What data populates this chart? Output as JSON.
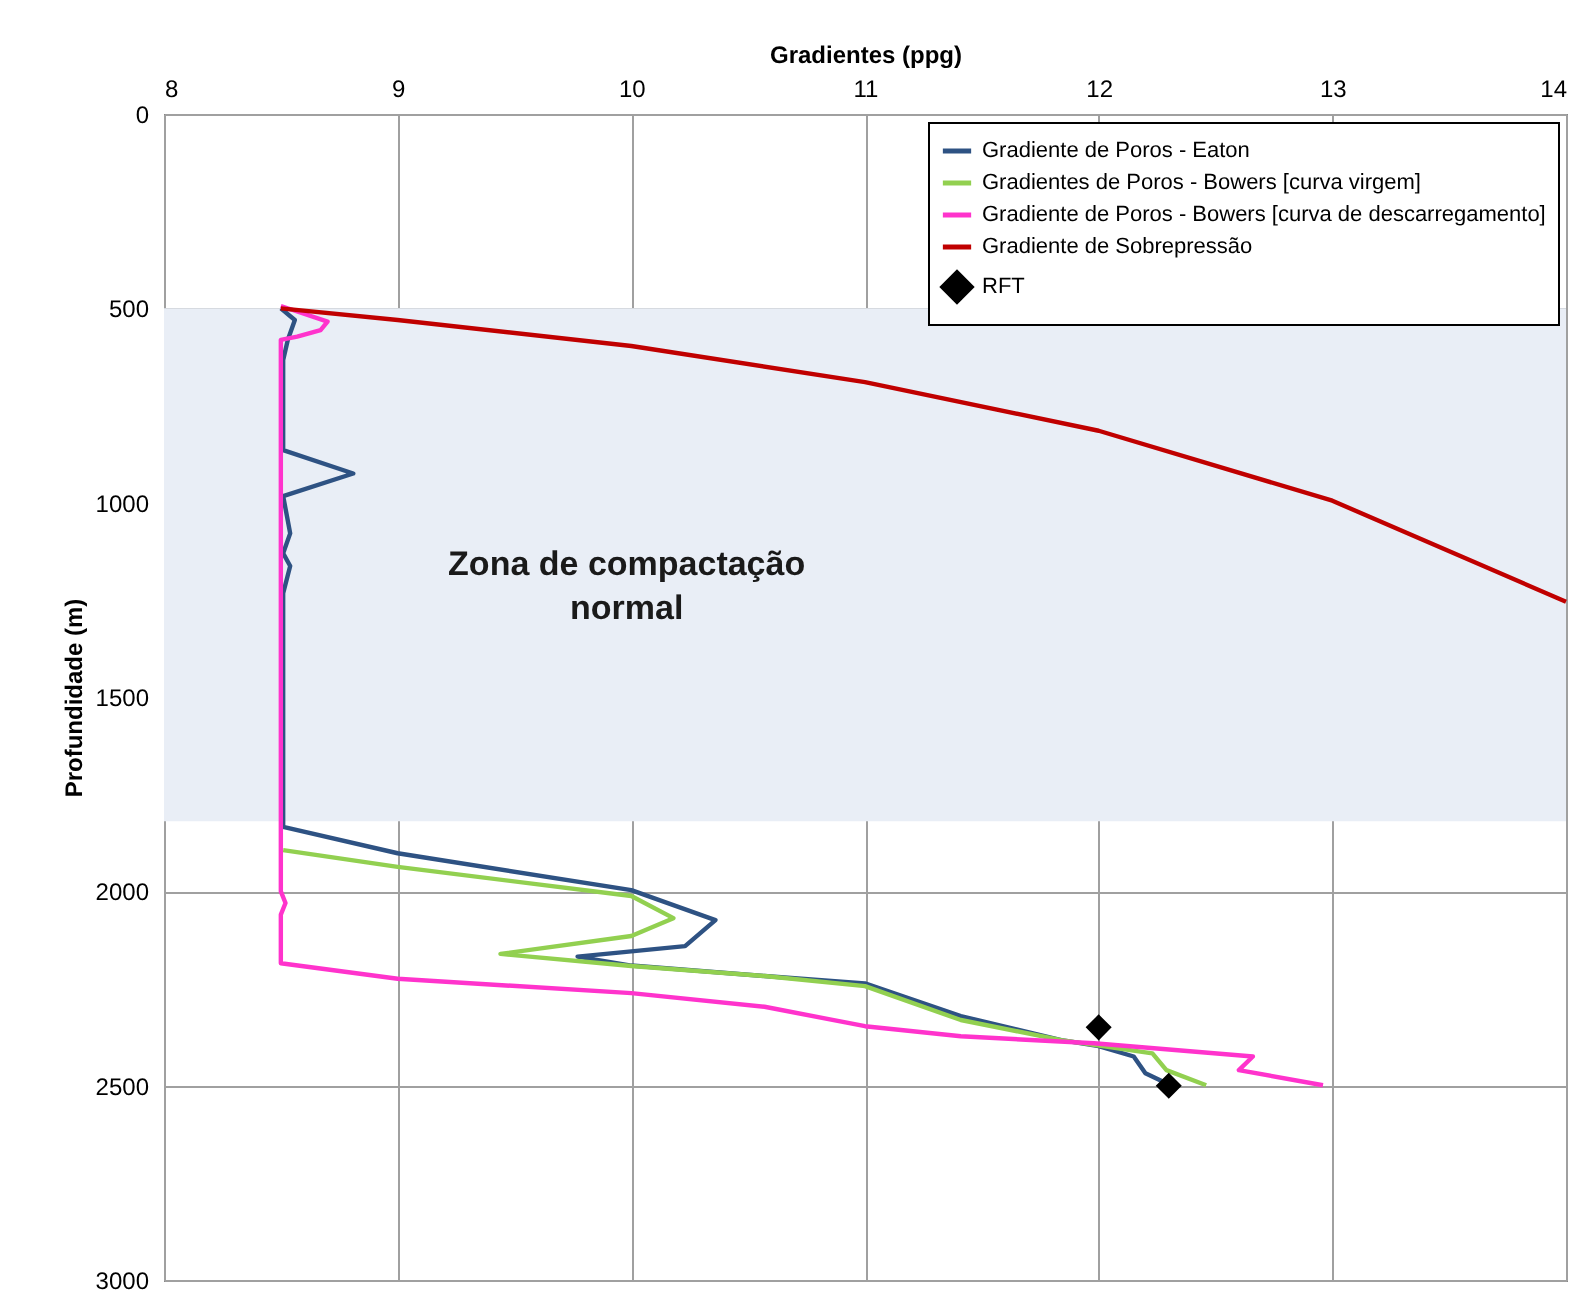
{
  "chart_data": {
    "type": "line",
    "xlabel": "Gradientes (ppg)",
    "ylabel": "Profundidade (m)",
    "xlim": [
      8,
      14
    ],
    "xticks": [
      8,
      9,
      10,
      11,
      12,
      13,
      14
    ],
    "ylim": [
      3000,
      0
    ],
    "yticks": [
      0,
      500,
      1000,
      1500,
      2000,
      2500,
      3000
    ],
    "grid": true,
    "legend": "top right",
    "bands": [
      {
        "axis": "y",
        "from": 500,
        "to": 1820,
        "label": "Zona de compactação\nnormal",
        "color": "#e9eef6"
      }
    ],
    "series": [
      {
        "name": "Gradiente de Poros - Eaton",
        "color": "#2e5283",
        "x": [
          8.5,
          8.56,
          8.53,
          8.51,
          8.51,
          8.81,
          8.51,
          8.54,
          8.51,
          8.54,
          8.51,
          8.51,
          9.0,
          10.0,
          10.36,
          10.23,
          9.77,
          10.0,
          10.57,
          11.0,
          11.41,
          11.84,
          12.0,
          12.15,
          12.2,
          12.29
        ],
        "values": [
          500,
          530,
          581,
          633,
          865,
          925,
          983,
          1079,
          1130,
          1163,
          1233,
          1834,
          1902,
          1997,
          2074,
          2141,
          2168,
          2191,
          2218,
          2237,
          2321,
          2383,
          2398,
          2425,
          2468,
          2494
        ]
      },
      {
        "name": "Gradientes de Poros - Bowers [curva virgem]",
        "color": "#92d050",
        "x": [
          8.51,
          9.0,
          10.0,
          10.18,
          10.0,
          9.44,
          10.0,
          10.57,
          11.0,
          11.41,
          11.84,
          12.23,
          12.29,
          12.46
        ],
        "values": [
          1894,
          1937,
          2012,
          2069,
          2115,
          2161,
          2192,
          2218,
          2244,
          2331,
          2383,
          2417,
          2460,
          2499
        ]
      },
      {
        "name": "Gradiente de Poros - Bowers [curva de descarregamento]",
        "color": "#ff33cc",
        "x": [
          8.5,
          8.7,
          8.67,
          8.57,
          8.5,
          8.5,
          8.52,
          8.5,
          8.5,
          9.0,
          10.0,
          10.57,
          11.0,
          11.41,
          11.98,
          12.66,
          12.6,
          12.96
        ],
        "values": [
          494,
          534,
          556,
          573,
          581,
          2000,
          2030,
          2060,
          2185,
          2225,
          2262,
          2297,
          2347,
          2373,
          2391,
          2425,
          2460,
          2499
        ]
      },
      {
        "name": "Gradiente de Sobrepressão",
        "color": "#c00000",
        "x": [
          8.5,
          9,
          10,
          11,
          12,
          13,
          14
        ],
        "values": [
          500,
          530,
          597,
          690,
          815,
          995,
          1255
        ]
      },
      {
        "name": "RFT",
        "type": "scatter",
        "marker": "diamond",
        "color": "#000000",
        "x": [
          12.0,
          12.3
        ],
        "values": [
          2350,
          2500
        ]
      }
    ]
  }
}
